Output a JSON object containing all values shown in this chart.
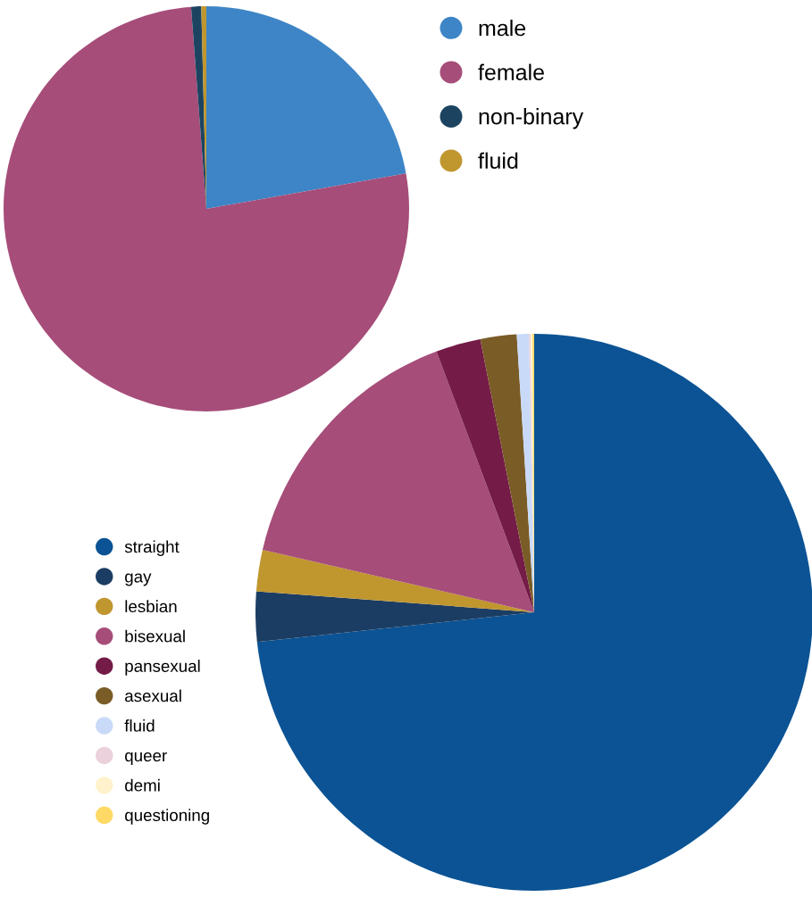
{
  "chart_data": [
    {
      "type": "pie",
      "categories": [
        "male",
        "female",
        "non-binary",
        "fluid"
      ],
      "values": [
        22.2,
        76.6,
        0.8,
        0.4
      ],
      "colors": [
        "#3d85c6",
        "#a64d79",
        "#1c4461",
        "#c0962f"
      ],
      "legend": "top right"
    },
    {
      "type": "pie",
      "categories": [
        "straight",
        "gay",
        "lesbian",
        "bisexual",
        "pansexual",
        "asexual",
        "fluid",
        "queer",
        "demi",
        "questioning"
      ],
      "values": [
        73.3,
        2.9,
        2.4,
        15.7,
        2.6,
        2.1,
        0.7,
        0.1,
        0.1,
        0.1
      ],
      "colors": [
        "#0b5394",
        "#1c3d63",
        "#c0962f",
        "#a64d79",
        "#741b47",
        "#7a5c27",
        "#c9daf8",
        "#ead1dc",
        "#fff2cc",
        "#ffd966"
      ],
      "legend": "bottom left"
    }
  ]
}
